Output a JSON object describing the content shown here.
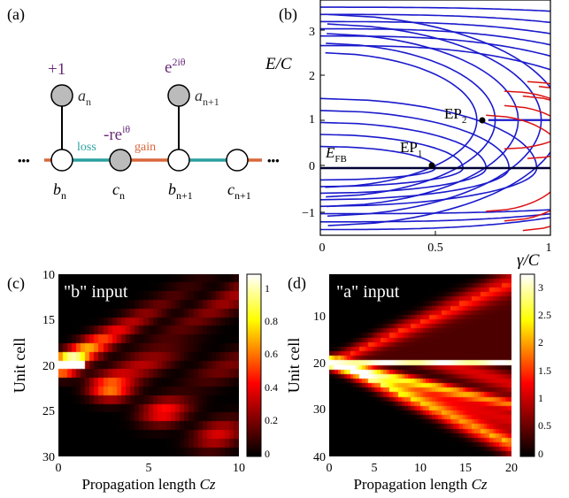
{
  "panels": {
    "a": {
      "label": "(a)",
      "site_a_n": "a",
      "site_a_n_sub": "n",
      "site_a_n1": "a",
      "site_a_n1_sub": "n+1",
      "onsite_a_n": "+1",
      "onsite_a_n1_base": "e",
      "onsite_a_n1_exp": "2iθ",
      "onsite_c_base": "-re",
      "onsite_c_exp": "iθ",
      "site_b_n": "b",
      "site_b_n_sub": "n",
      "site_c_n": "c",
      "site_c_n_sub": "n",
      "site_b_n1": "b",
      "site_b_n1_sub": "n+1",
      "site_c_n1": "c",
      "site_c_n1_sub": "n+1",
      "loss": "loss",
      "gain": "gain",
      "dots": "•••",
      "colors": {
        "loss": "#2aa0a0",
        "gain": "#d9663a",
        "purple": "#6a2a7a",
        "gray": "#bbbbbb"
      }
    },
    "b": {
      "label": "(b)",
      "ylabel_E": "E",
      "ylabel_C": "/C",
      "xlabel_gamma": "γ",
      "xlabel_C": "/C",
      "yticks": [
        "3",
        "2",
        "1",
        "0",
        "−1"
      ],
      "xticks": [
        "0",
        "0.5",
        "1"
      ],
      "efb": "E",
      "efb_sub": "FB",
      "ep1": "EP",
      "ep1_sub": "1",
      "ep2": "EP",
      "ep2_sub": "2",
      "colors": {
        "blue": "#1a1acc",
        "red": "#dd1111"
      }
    },
    "c": {
      "label": "(c)",
      "title": "\"b\" input",
      "ylabel": "Unit cell",
      "xlabel_base": "Propagation length ",
      "xlabel_var": "Cz",
      "yticks": [
        "10",
        "15",
        "20",
        "25",
        "30"
      ],
      "xticks": [
        "0",
        "5",
        "10"
      ],
      "cbar_ticks": [
        "1",
        "0.8",
        "0.6",
        "0.4",
        "0.2",
        "0"
      ]
    },
    "d": {
      "label": "(d)",
      "title": "\"a\" input",
      "ylabel": "Unit cell",
      "xlabel_base": "Propagation length ",
      "xlabel_var": "Cz",
      "yticks": [
        "10",
        "20",
        "30",
        "40"
      ],
      "xticks": [
        "0",
        "5",
        "10",
        "15",
        "20"
      ],
      "cbar_ticks": [
        "3",
        "2.5",
        "2",
        "1.5",
        "1",
        "0.5",
        "0"
      ]
    }
  },
  "chart_data": [
    {
      "type": "line",
      "title": "",
      "xlabel": "γ/C",
      "ylabel": "E/C",
      "xlim": [
        0,
        1
      ],
      "ylim": [
        -1.4,
        3.5
      ],
      "grid": false,
      "annotations": [
        "E_FB at E/C = 0",
        "EP1 at γ/C = 0.5, E/C = 0",
        "EP2 at γ/C ≈ 0.73, E/C = 1"
      ]
    },
    {
      "type": "heatmap",
      "title": "\"b\" input",
      "xlabel": "Propagation length Cz",
      "ylabel": "Unit cell",
      "xlim": [
        0,
        10
      ],
      "ylim": [
        30,
        10
      ],
      "input_cell": 20,
      "colorbar_range": [
        0,
        1.1
      ]
    },
    {
      "type": "heatmap",
      "title": "\"a\" input",
      "xlabel": "Propagation length Cz",
      "ylabel": "Unit cell",
      "xlim": [
        0,
        20
      ],
      "ylim": [
        40,
        1
      ],
      "input_cell": 20,
      "colorbar_range": [
        0,
        3.3
      ]
    }
  ]
}
